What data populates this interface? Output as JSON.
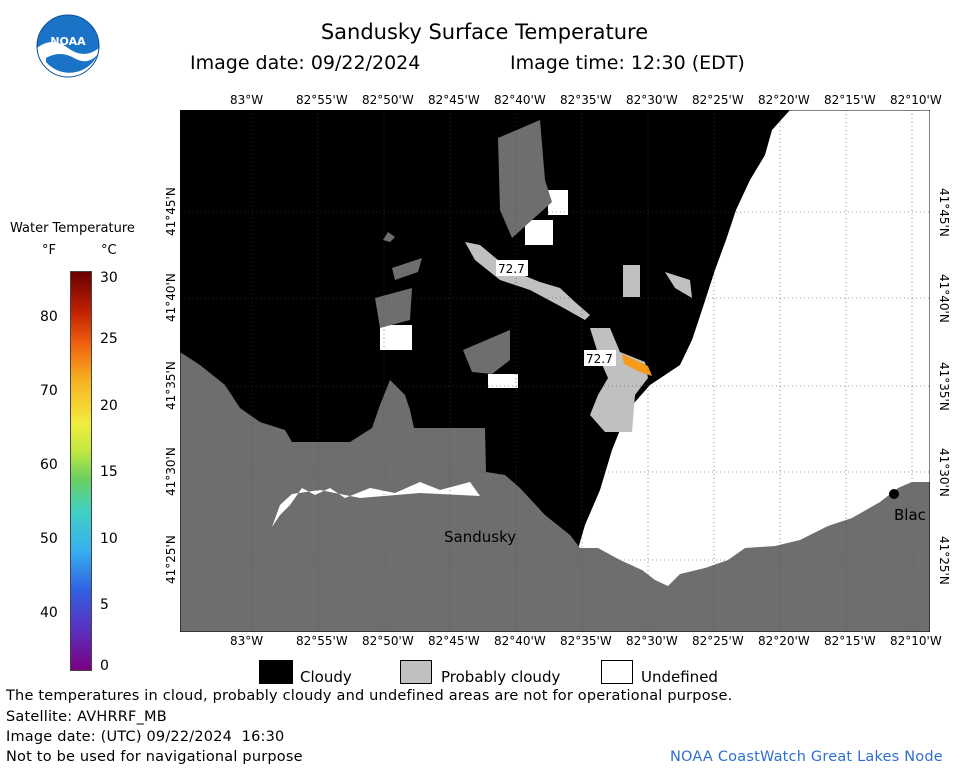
{
  "header": {
    "title": "Sandusky Surface Temperature",
    "image_date": "Image date: 09/22/2024",
    "image_time": "Image time: 12:30 (EDT)"
  },
  "logo": {
    "text": "NOAA"
  },
  "colorbar": {
    "title": "Water Temperature",
    "unit_f": "°F",
    "unit_c": "°C",
    "f_ticks": [
      "80",
      "70",
      "60",
      "50",
      "40"
    ],
    "c_ticks": [
      "30",
      "25",
      "20",
      "15",
      "10",
      "5",
      "0"
    ]
  },
  "map": {
    "lon_labels": [
      "83°W",
      "82°55'W",
      "82°50'W",
      "82°45'W",
      "82°40'W",
      "82°35'W",
      "82°30'W",
      "82°25'W",
      "82°20'W",
      "82°15'W",
      "82°10'W"
    ],
    "lat_labels": [
      "41°45'N",
      "41°40'N",
      "41°35'N",
      "41°30'N",
      "41°25'N"
    ],
    "place_labels": {
      "sandusky": "Sandusky",
      "black": "Blac"
    },
    "temp_labels": [
      "72.7",
      "72.7"
    ]
  },
  "legend": {
    "cloudy": "Cloudy",
    "probably_cloudy": "Probably cloudy",
    "undefined": "Undefined"
  },
  "footer": {
    "disclaimer": "The temperatures in cloud, probably cloudy and undefined areas are not for operational purpose.",
    "satellite": "Satellite: AVHRRF_MB",
    "utc_date": "Image date: (UTC) 09/22/2024  16:30",
    "navigation": "Not to be used for navigational purpose",
    "credit": "NOAA CoastWatch Great Lakes Node"
  },
  "colors": {
    "cloudy": "#000000",
    "probably_cloudy": "#c0c0c0",
    "undefined": "#ffffff",
    "land": "#6e6e6e",
    "warm_pixel": "#f59a1a",
    "credit": "#2f6fd0"
  }
}
